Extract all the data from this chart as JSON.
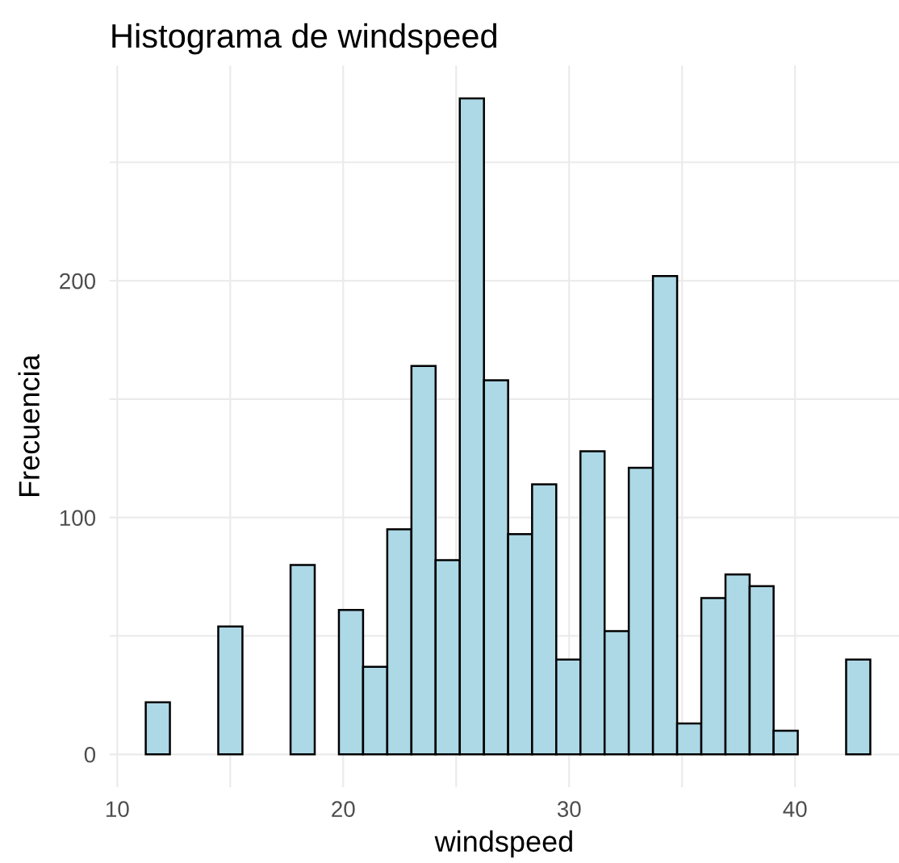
{
  "chart_data": {
    "type": "histogram",
    "title": "Histograma de windspeed",
    "xlabel": "windspeed",
    "ylabel": "Frecuencia",
    "bins": [
      11.26,
      12.33,
      13.4,
      14.47,
      15.54,
      16.61,
      17.67,
      18.74,
      19.81,
      20.88,
      21.95,
      23.02,
      24.09,
      25.16,
      26.23,
      27.3,
      28.36,
      29.43,
      30.5,
      31.57,
      32.64,
      33.71,
      34.78,
      35.85,
      36.92,
      37.99,
      39.05,
      40.12,
      41.19,
      42.26,
      43.33
    ],
    "values": [
      22,
      0,
      0,
      54,
      0,
      0,
      80,
      0,
      61,
      37,
      95,
      164,
      82,
      277,
      158,
      93,
      114,
      40,
      128,
      52,
      121,
      202,
      13,
      66,
      76,
      71,
      10,
      0,
      0,
      40
    ],
    "color": "#add8e6",
    "xlim": [
      9.66,
      44.6
    ],
    "ylim": [
      -13.85,
      290.85
    ],
    "xticks": [
      10,
      {
        "value": 15,
        "label": null
      },
      20,
      {
        "value": 25,
        "label": null
      },
      30,
      {
        "value": 35,
        "label": null
      },
      40
    ],
    "yticks": [
      0,
      {
        "value": 50,
        "label": null
      },
      100,
      {
        "value": 150,
        "label": null
      },
      200,
      {
        "value": 250,
        "label": null
      }
    ],
    "grid": true
  }
}
